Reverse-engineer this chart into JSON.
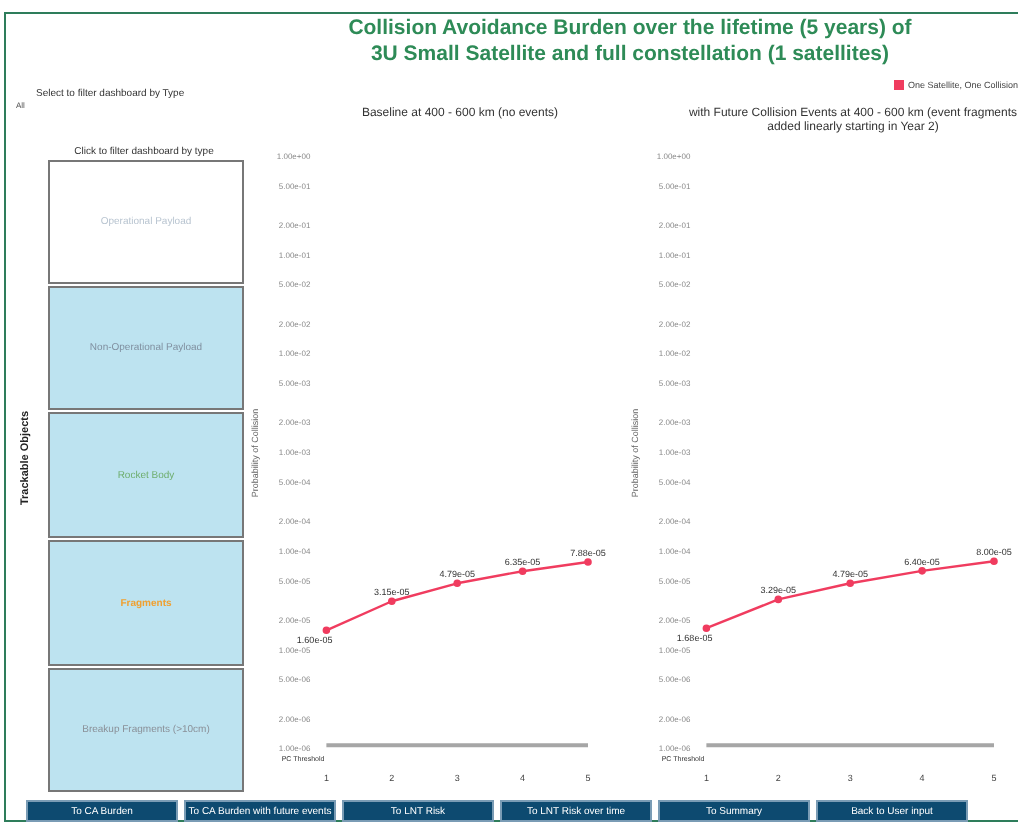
{
  "chart_data": [
    {
      "type": "other",
      "title": "Collision Avoidance Burden over the lifetime (5 years) of 3U Small Satellite and full constellation (1 satellites)",
      "annotations": [
        "Select to filter dashboard by Type",
        "All",
        "Click to filter dashboard by type",
        "Trackable Objects",
        "Operational Payload",
        "Non-Operational Payload",
        "Rocket Body",
        "Fragments",
        "Breakup Fragments (>10cm)",
        "To CA Burden",
        "To CA Burden with future events",
        "To LNT Risk",
        "To LNT Risk over time",
        "To Summary",
        "Back to User input"
      ]
    },
    {
      "type": "line",
      "title": "Baseline at 400 - 600 km (no events)",
      "ylabel": "Probability of Collision",
      "categories": [
        "1",
        "2",
        "3",
        "4",
        "5"
      ],
      "log": true,
      "grid": false,
      "marker": "circle",
      "ylim": [
        1e-06,
        1
      ],
      "yticks": [
        {
          "value": 1,
          "label": "1.00e+00"
        },
        {
          "value": 0.5,
          "label": "5.00e-01"
        },
        {
          "value": 0.2,
          "label": "2.00e-01"
        },
        {
          "value": 0.1,
          "label": "1.00e-01"
        },
        {
          "value": 0.05,
          "label": "5.00e-02"
        },
        {
          "value": 0.02,
          "label": "2.00e-02"
        },
        {
          "value": 0.01,
          "label": "1.00e-02"
        },
        {
          "value": 0.005,
          "label": "5.00e-03"
        },
        {
          "value": 0.002,
          "label": "2.00e-03"
        },
        {
          "value": 0.001,
          "label": "1.00e-03"
        },
        {
          "value": 0.0005,
          "label": "5.00e-04"
        },
        {
          "value": 0.0002,
          "label": "2.00e-04"
        },
        {
          "value": 0.0001,
          "label": "1.00e-04"
        },
        {
          "value": 5e-05,
          "label": "5.00e-05"
        },
        {
          "value": 2e-05,
          "label": "2.00e-05"
        },
        {
          "value": 1e-05,
          "label": "1.00e-05"
        },
        {
          "value": 5e-06,
          "label": "5.00e-06"
        },
        {
          "value": 2e-06,
          "label": "2.00e-06"
        },
        {
          "value": 1e-06,
          "label": "1.00e-06"
        }
      ],
      "ref_lines": [
        {
          "axis": "y",
          "value": 1e-06,
          "label": "PC Threshold",
          "color": "#a6a6a6"
        }
      ],
      "series": [
        {
          "color": "#f03c5f",
          "values": [
            1.6e-05,
            3.15e-05,
            4.79e-05,
            6.35e-05,
            7.88e-05
          ],
          "value_labels": [
            "1.60e-05",
            "3.15e-05",
            "4.79e-05",
            "6.35e-05",
            "7.88e-05"
          ]
        }
      ]
    },
    {
      "type": "line",
      "title": "with Future Collision Events at 400 - 600 km (event fragments added linearly starting in Year 2)",
      "ylabel": "Probability of Collision",
      "categories": [
        "1",
        "2",
        "3",
        "4",
        "5"
      ],
      "log": true,
      "grid": false,
      "legend": "top right",
      "marker": "circle",
      "ylim": [
        1e-06,
        1
      ],
      "yticks": [
        {
          "value": 1,
          "label": "1.00e+00"
        },
        {
          "value": 0.5,
          "label": "5.00e-01"
        },
        {
          "value": 0.2,
          "label": "2.00e-01"
        },
        {
          "value": 0.1,
          "label": "1.00e-01"
        },
        {
          "value": 0.05,
          "label": "5.00e-02"
        },
        {
          "value": 0.02,
          "label": "2.00e-02"
        },
        {
          "value": 0.01,
          "label": "1.00e-02"
        },
        {
          "value": 0.005,
          "label": "5.00e-03"
        },
        {
          "value": 0.002,
          "label": "2.00e-03"
        },
        {
          "value": 0.001,
          "label": "1.00e-03"
        },
        {
          "value": 0.0005,
          "label": "5.00e-04"
        },
        {
          "value": 0.0002,
          "label": "2.00e-04"
        },
        {
          "value": 0.0001,
          "label": "1.00e-04"
        },
        {
          "value": 5e-05,
          "label": "5.00e-05"
        },
        {
          "value": 2e-05,
          "label": "2.00e-05"
        },
        {
          "value": 1e-05,
          "label": "1.00e-05"
        },
        {
          "value": 5e-06,
          "label": "5.00e-06"
        },
        {
          "value": 2e-06,
          "label": "2.00e-06"
        },
        {
          "value": 1e-06,
          "label": "1.00e-06"
        }
      ],
      "ref_lines": [
        {
          "axis": "y",
          "value": 1e-06,
          "label": "PC Threshold",
          "color": "#a6a6a6"
        }
      ],
      "series": [
        {
          "name": "One Satellite, One Collision",
          "color": "#f03c5f",
          "values": [
            1.68e-05,
            3.29e-05,
            4.79e-05,
            6.4e-05,
            8e-05
          ],
          "value_labels": [
            "1.68e-05",
            "3.29e-05",
            "4.79e-05",
            "6.40e-05",
            "8.00e-05"
          ]
        }
      ]
    }
  ]
}
